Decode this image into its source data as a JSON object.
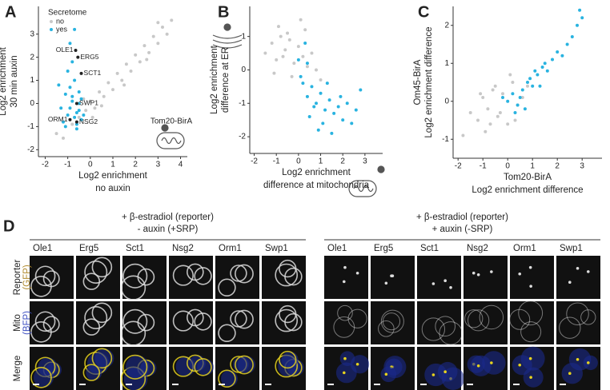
{
  "chart_data": [
    {
      "type": "scatter",
      "label": "A",
      "xlabel": [
        "Log2 enrichment",
        "no auxin"
      ],
      "ylabel": [
        "Log2 enrichment",
        "30 min auxin"
      ],
      "legend_title": "Secretome",
      "xlim": [
        -2.3,
        4.3
      ],
      "ylim": [
        -2.3,
        4.2
      ],
      "xticks": [
        -2,
        -1,
        0,
        1,
        2,
        3,
        4
      ],
      "yticks": [
        -2,
        -1,
        0,
        1,
        2,
        3
      ],
      "series": [
        {
          "name": "no",
          "color": "#c8c8c8",
          "x": [
            -1.5,
            -1.2,
            -0.8,
            -0.5,
            -0.2,
            0,
            0.2,
            0.4,
            0.6,
            0.8,
            1,
            1.2,
            1.4,
            1.6,
            1.8,
            2,
            2.2,
            2.4,
            2.6,
            2.8,
            3,
            3.2,
            3.4,
            3.6,
            0.5,
            1.5,
            2.5,
            -0.3,
            0.1,
            3.0
          ],
          "values": [
            -1.3,
            -1.5,
            -0.9,
            -0.6,
            -0.3,
            0.1,
            -0.2,
            0.5,
            0.3,
            0.9,
            0.6,
            1.3,
            1.0,
            1.7,
            1.4,
            2.1,
            1.8,
            2.5,
            2.2,
            2.9,
            2.6,
            3.3,
            3.0,
            3.6,
            -0.1,
            0.8,
            1.9,
            0.2,
            -0.6,
            3.5
          ]
        },
        {
          "name": "yes",
          "color": "#29b3e0",
          "x": [
            -1.2,
            -1.0,
            -0.9,
            -0.8,
            -0.7,
            -0.6,
            -0.5,
            -0.4,
            -1.1,
            -0.9,
            -0.7,
            -0.5,
            -1.0,
            -0.8,
            -0.6,
            -0.4,
            -1.3,
            -0.3,
            -0.9,
            -0.7,
            -0.5,
            -1.1,
            -0.8,
            -0.6,
            -1.4
          ],
          "values": [
            -0.8,
            -0.5,
            -0.2,
            0.1,
            -0.6,
            -0.9,
            -0.3,
            0.2,
            0.4,
            0.7,
            1.0,
            0.5,
            1.4,
            1.8,
            -1.1,
            -0.7,
            -0.2,
            -0.5,
            2.6,
            3.2,
            0.0,
            -1.0,
            0.3,
            -0.4,
            0.8
          ]
        }
      ],
      "annotations": [
        {
          "text": "OLE1",
          "x": -0.65,
          "y": 2.3
        },
        {
          "text": "ERG5",
          "x": -0.55,
          "y": 2.0
        },
        {
          "text": "SCT1",
          "x": -0.4,
          "y": 1.3
        },
        {
          "text": "SWP1",
          "x": -0.6,
          "y": 0.0
        },
        {
          "text": "ORM1",
          "x": -0.9,
          "y": -0.7
        },
        {
          "text": "NSG2",
          "x": -0.6,
          "y": -0.8
        }
      ],
      "note": "Tom20-BirA"
    },
    {
      "type": "scatter",
      "label": "B",
      "xlabel": [
        "Log2 enrichment",
        "difference at mitochondria"
      ],
      "ylabel": [
        "Log2 enrichment",
        "difference at ER"
      ],
      "xlim": [
        -2.2,
        3.8
      ],
      "ylim": [
        -2.5,
        1.9
      ],
      "xticks": [
        -2,
        -1,
        0,
        1,
        2,
        3
      ],
      "yticks": [
        -2,
        -1,
        0,
        1
      ],
      "series": [
        {
          "color": "#c8c8c8",
          "x": [
            -1.5,
            -1.2,
            -1,
            -0.8,
            -0.6,
            -0.4,
            -0.2,
            0,
            0.2,
            0.4,
            0.6,
            -0.9,
            -0.5,
            0.1,
            -0.3,
            0.8,
            -1.1,
            0.3,
            -0.7,
            1.0
          ],
          "values": [
            0.5,
            0.8,
            0.3,
            1.0,
            0.6,
            0.9,
            0.2,
            0.7,
            0.4,
            0.1,
            0.5,
            1.3,
            1.1,
            1.5,
            -0.2,
            0.0,
            -0.1,
            1.2,
            0.4,
            -0.3
          ]
        },
        {
          "color": "#29b3e0",
          "x": [
            0,
            0.2,
            0.4,
            0.6,
            0.8,
            1.0,
            1.2,
            1.4,
            1.6,
            1.8,
            2.0,
            2.2,
            2.4,
            2.6,
            0.3,
            0.5,
            0.9,
            1.3,
            0.1,
            0.7,
            1.1,
            1.5,
            1.9,
            2.8,
            0.4
          ],
          "values": [
            0.3,
            -0.4,
            -0.8,
            -0.5,
            -1.0,
            -0.7,
            -1.2,
            -0.9,
            -1.3,
            -1.1,
            -1.5,
            -1.0,
            -1.6,
            -1.2,
            0.8,
            -1.4,
            -1.8,
            -0.4,
            -0.2,
            -1.1,
            -1.6,
            -1.9,
            -0.8,
            -0.6,
            0.2
          ]
        }
      ]
    },
    {
      "type": "scatter",
      "label": "C",
      "xlabel": [
        "Tom20-BirA",
        "Log2 enrichment difference"
      ],
      "ylabel": [
        "Om45-BirA",
        "Log2 enrichment difference"
      ],
      "xlim": [
        -2.2,
        3.8
      ],
      "ylim": [
        -1.5,
        2.5
      ],
      "xticks": [
        -2,
        -1,
        0,
        1,
        2,
        3
      ],
      "yticks": [
        -1,
        0,
        1,
        2
      ],
      "series": [
        {
          "color": "#c8c8c8",
          "x": [
            -1.5,
            -1.2,
            -1,
            -0.8,
            -0.6,
            -0.4,
            -0.2,
            0,
            0.2,
            0.4,
            -0.9,
            -0.5,
            0.1,
            -0.3,
            0.6,
            -1.1,
            -0.7,
            0.3,
            -1.8,
            0.8
          ],
          "values": [
            -0.3,
            -0.5,
            0.1,
            -0.2,
            0.3,
            -0.4,
            0.2,
            -0.6,
            0.5,
            -0.1,
            -0.8,
            0.4,
            0.7,
            -0.3,
            0.1,
            0.2,
            -0.6,
            -0.5,
            -0.9,
            0.4
          ]
        },
        {
          "color": "#29b3e0",
          "x": [
            0,
            0.2,
            0.4,
            0.6,
            0.8,
            1.0,
            1.2,
            1.4,
            1.6,
            1.8,
            2.0,
            2.2,
            2.4,
            2.6,
            2.8,
            3.0,
            0.3,
            0.5,
            0.9,
            1.3,
            -0.2,
            0.7,
            1.1,
            1.5,
            2.9
          ],
          "values": [
            0,
            0.2,
            -0.1,
            0.3,
            0.5,
            0.4,
            0.7,
            0.9,
            0.8,
            1.1,
            1.3,
            1.2,
            1.5,
            1.7,
            2.0,
            2.2,
            -0.3,
            0.1,
            0.6,
            0.4,
            0.1,
            -0.2,
            0.8,
            1.0,
            2.4
          ]
        }
      ]
    }
  ],
  "panel_d": {
    "label": "D",
    "groups": [
      {
        "title_lines": [
          "+ β-estradiol (reporter)",
          "- auxin (+SRP)"
        ],
        "columns": [
          "Ole1",
          "Erg5",
          "Sct1",
          "Nsg2",
          "Orm1",
          "Swp1"
        ]
      },
      {
        "title_lines": [
          "+ β-estradiol (reporter)",
          "+ auxin (-SRP)"
        ],
        "columns": [
          "Ole1",
          "Erg5",
          "Sct1",
          "Nsg2",
          "Orm1",
          "Swp1"
        ]
      }
    ],
    "rows": [
      {
        "name": "Reporter",
        "tag": "(GFP)"
      },
      {
        "name": "Mito",
        "tag": "(BFP)"
      },
      {
        "name": "Merge"
      }
    ]
  }
}
